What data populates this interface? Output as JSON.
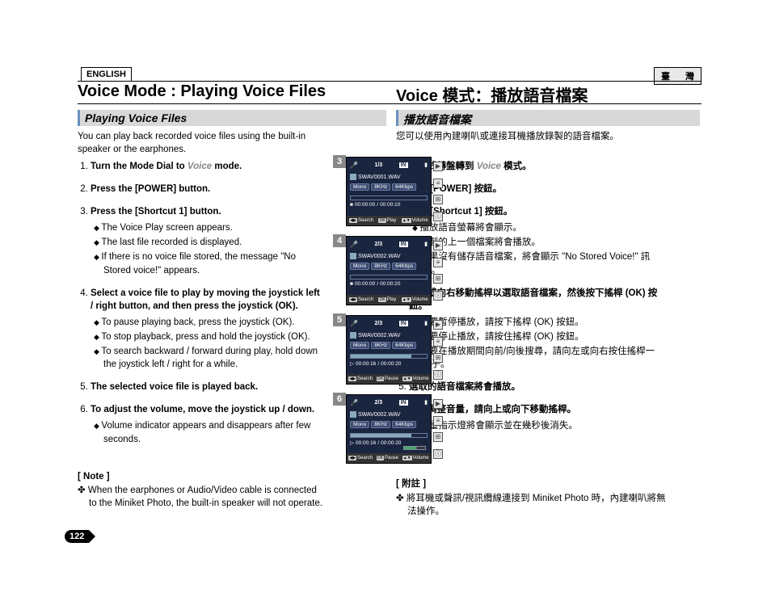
{
  "lang": {
    "en": "ENGLISH",
    "tw": "臺　灣"
  },
  "title": {
    "en": "Voice Mode : Playing Voice Files",
    "tw": "Voice 模式：播放語音檔案"
  },
  "subhead": {
    "en": "Playing Voice Files",
    "tw": "播放語音檔案"
  },
  "intro": {
    "en": "You can play back recorded voice files using the built-in speaker or the earphones.",
    "tw": "您可以使用內建喇叭或連接耳機播放錄製的語音檔案。"
  },
  "steps_en": [
    {
      "t": "Turn the Mode Dial to Voice mode.",
      "voice_word": "Voice"
    },
    {
      "t": "Press the [POWER] button."
    },
    {
      "t": "Press the [Shortcut 1] button.",
      "sub": [
        "The Voice Play screen appears.",
        "The last file recorded is displayed.",
        "If there is no voice file stored, the message \"No Stored voice!\" appears."
      ]
    },
    {
      "t": "Select a voice file to play by moving the joystick left / right button, and then press the joystick (OK).",
      "sub": [
        "To pause playing back, press the joystick (OK).",
        "To stop playback, press and hold the joystick (OK).",
        "To search backward / forward during play, hold down the joystick left / right for a while."
      ]
    },
    {
      "t": "The selected voice file is played back."
    },
    {
      "t": "To adjust the volume, move the joystick up / down.",
      "sub": [
        "Volume indicator appears and disappears after few seconds."
      ]
    }
  ],
  "steps_tw": [
    {
      "t": "將模式轉盤轉到 Voice 模式。",
      "voice_word": "Voice"
    },
    {
      "t": "按下 [POWER] 按鈕。"
    },
    {
      "t": "按下 [Shortcut 1] 按鈕。",
      "sub": [
        "播放語音螢幕將會顯示。",
        "錄製的上一個檔案將會播放。",
        "如果沒有儲存語音檔案，將會顯示 \"No Stored Voice!\" 訊息。"
      ]
    },
    {
      "t": "向左或向右移動搖桿以選取語音檔案，然後按下搖桿 (OK) 按鈕。",
      "sub": [
        "若要暫停播放，請按下搖桿 (OK) 按鈕。",
        "若要停止播放，請按住搖桿 (OK) 按鈕。",
        "若要在播放期間向前/向後搜尋，請向左或向右按住搖桿一下子。"
      ]
    },
    {
      "t": "選取的語音檔案將會播放。"
    },
    {
      "t": "若要調整音量，請向上或向下移動搖桿。",
      "sub": [
        "音量指示燈將會顯示並在幾秒後消失。"
      ]
    }
  ],
  "note": {
    "h_en": "[ Note ]",
    "en": "When the earphones or Audio/Video cable is connected to the Miniket Photo, the built-in speaker will not operate.",
    "h_tw": "[ 附註 ]",
    "tw": "將耳機或聲訊/視訊纜線連接到 Miniket Photo 時，內建喇叭將無法操作。"
  },
  "page_num": "122",
  "screens": [
    {
      "n": "3",
      "counter": "1/3",
      "file": "SWAV0001.WAV",
      "chips": [
        "Mono",
        "8KHz",
        "64Kbps"
      ],
      "time_l": "00:00:00",
      "time_r": "00:00:10",
      "play": "■",
      "bot": [
        "Search",
        "Play",
        "Volume"
      ],
      "okmid": "OK",
      "pbar": 0
    },
    {
      "n": "4",
      "counter": "2/3",
      "file": "SWAV0002.WAV",
      "chips": [
        "Mono",
        "8KHz",
        "64Kbps"
      ],
      "time_l": "00:00:00",
      "time_r": "00:00:20",
      "play": "■",
      "bot": [
        "Search",
        "Play",
        "Volume"
      ],
      "okmid": "OK",
      "pbar": 0
    },
    {
      "n": "5",
      "counter": "2/3",
      "file": "SWAV0002.WAV",
      "chips": [
        "Mono",
        "8KHz",
        "64Kbps"
      ],
      "time_l": "00:00:16",
      "time_r": "00:00:20",
      "play": "▷",
      "bot": [
        "Search",
        "Pause",
        "Volume"
      ],
      "okmid": "OK",
      "pbar": 80
    },
    {
      "n": "6",
      "counter": "2/3",
      "file": "SWAV0002.WAV",
      "chips": [
        "Mono",
        "8KHz",
        "64Kbps"
      ],
      "time_l": "00:00:16",
      "time_r": "00:00:20",
      "play": "▷",
      "bot": [
        "Search",
        "Pause",
        "Volume"
      ],
      "okmid": "OK",
      "pbar": 80,
      "vol": true
    }
  ],
  "side_icons": [
    "▶",
    "≡",
    "⊞",
    "ⓘ"
  ],
  "topbar_in": "IN",
  "colors": {
    "lcd_bg": "#1a2540",
    "chip_bg": "#3a4a70",
    "tag_bg": "#888888"
  }
}
